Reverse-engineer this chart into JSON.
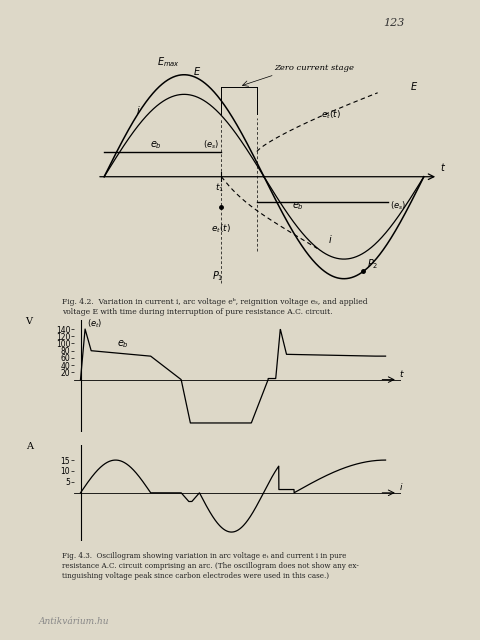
{
  "page_color": "#ddd8c8",
  "page_number": "123",
  "fig42_caption_line1": "Fig. 4.2.  Variation in current i, arc voltage eᵇ, reignition voltage eₛ, and applied",
  "fig42_caption_line2": "voltage E with time during interruption of pure resistance A.C. circuit.",
  "fig43_caption_line1": "Fig. 4.3.  Oscillogram showing variation in arc voltage eₜ and current i in pure",
  "fig43_caption_line2": "resistance A.C. circuit comprising an arc. (The oscillogram does not show any ex-",
  "fig43_caption_line3": "tinguishing voltage peak since carbon electrodes were used in this case.)",
  "watermark": "Antikvárium.hu",
  "vol_yticks": [
    20,
    40,
    60,
    80,
    100,
    120,
    140
  ],
  "amp_yticks": [
    5,
    10,
    15
  ]
}
